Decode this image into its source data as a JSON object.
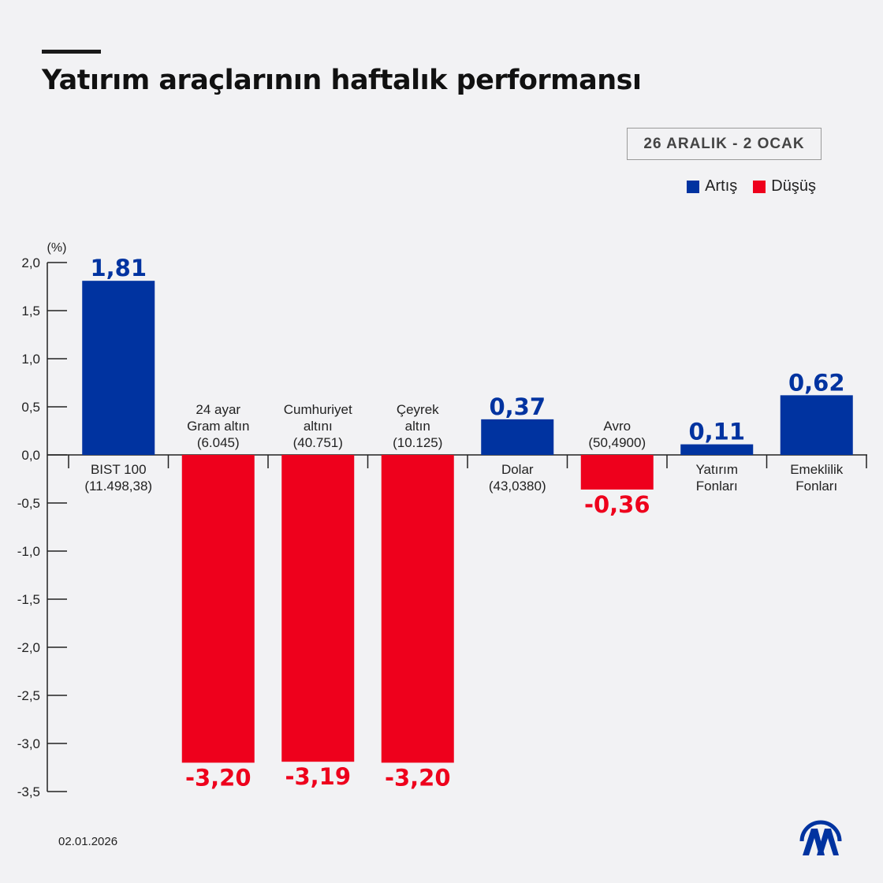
{
  "title": "Yatırım araçlarının haftalık performansı",
  "date_range": "26 ARALIK - 2 OCAK",
  "footer_date": "02.01.2026",
  "logo_text": "AA",
  "legend": [
    {
      "label": "Artış",
      "color": "#0033a0"
    },
    {
      "label": "Düşüş",
      "color": "#ee001c"
    }
  ],
  "chart_data": {
    "type": "bar",
    "ylabel": "(%)",
    "ylim": [
      -3.5,
      2.0
    ],
    "yticks": [
      "2,0",
      "1,5",
      "1,0",
      "0,5",
      "0,0",
      "-0,5",
      "-1,0",
      "-1,5",
      "-2,0",
      "-2,5",
      "-3,0",
      "-3,5"
    ],
    "ytick_values": [
      2.0,
      1.5,
      1.0,
      0.5,
      0.0,
      -0.5,
      -1.0,
      -1.5,
      -2.0,
      -2.5,
      -3.0,
      -3.5
    ],
    "categories": [
      [
        "BIST 100",
        "(11.498,38)"
      ],
      [
        "24 ayar",
        "Gram altın",
        "(6.045)"
      ],
      [
        "Cumhuriyet",
        "altını",
        "(40.751)"
      ],
      [
        "Çeyrek",
        "altın",
        "(10.125)"
      ],
      [
        "Dolar",
        "(43,0380)"
      ],
      [
        "Avro",
        "(50,4900)"
      ],
      [
        "Yatırım",
        "Fonları"
      ],
      [
        "Emeklilik",
        "Fonları"
      ]
    ],
    "values": [
      1.81,
      -3.2,
      -3.19,
      -3.2,
      0.37,
      -0.36,
      0.11,
      0.62
    ],
    "value_labels": [
      "1,81",
      "-3,20",
      "-3,19",
      "-3,20",
      "0,37",
      "-0,36",
      "0,11",
      "0,62"
    ],
    "colors": {
      "positive": "#0033a0",
      "negative": "#ee001c"
    },
    "grid": false
  }
}
